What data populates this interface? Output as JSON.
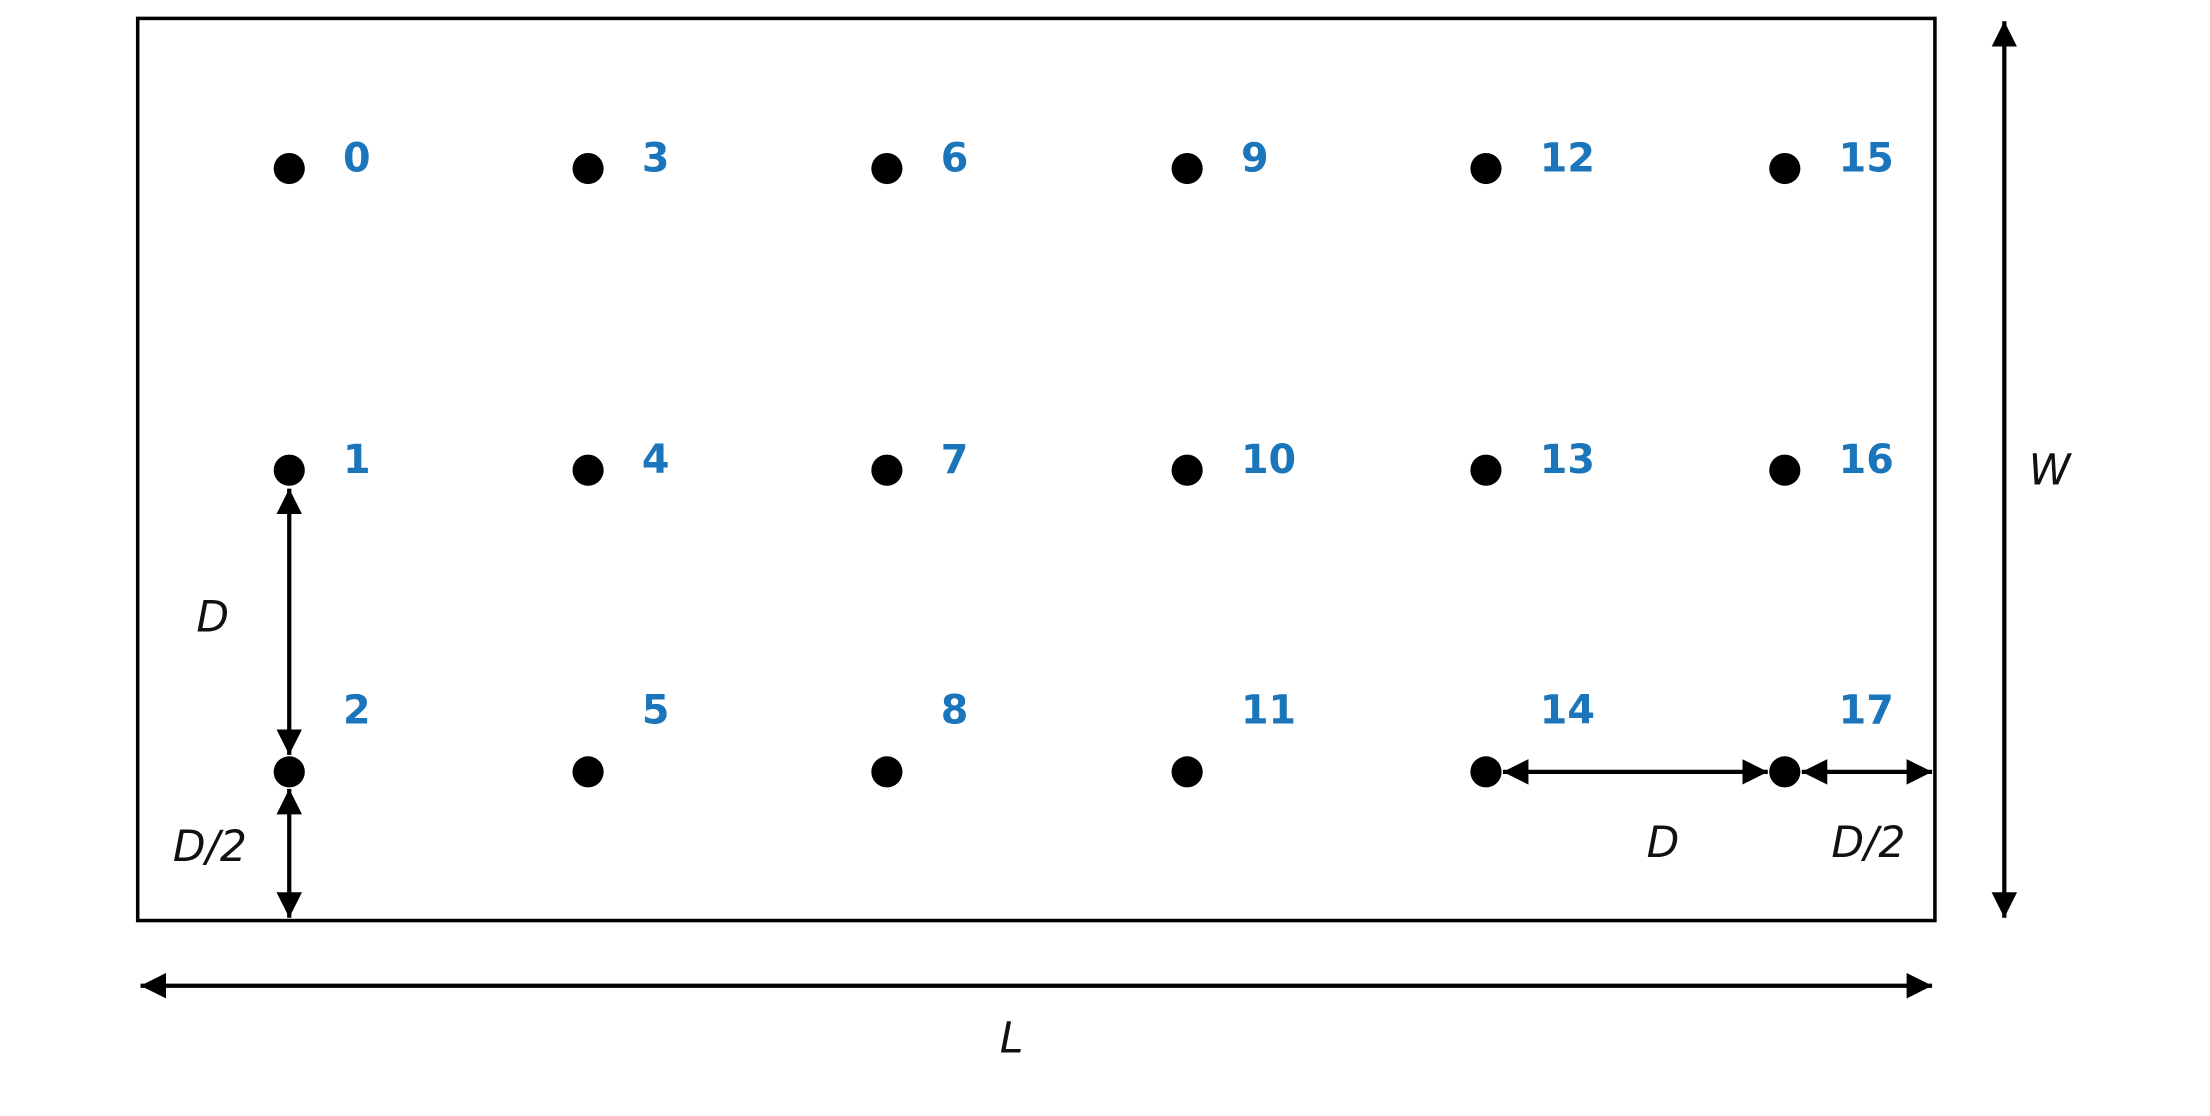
{
  "nodes": [
    {
      "label": "0"
    },
    {
      "label": "1"
    },
    {
      "label": "2"
    },
    {
      "label": "3"
    },
    {
      "label": "4"
    },
    {
      "label": "5"
    },
    {
      "label": "6"
    },
    {
      "label": "7"
    },
    {
      "label": "8"
    },
    {
      "label": "9"
    },
    {
      "label": "10"
    },
    {
      "label": "11"
    },
    {
      "label": "12"
    },
    {
      "label": "13"
    },
    {
      "label": "14"
    },
    {
      "label": "15"
    },
    {
      "label": "16"
    },
    {
      "label": "17"
    }
  ],
  "dimensions": {
    "vertical_spacing": "D",
    "bottom_margin": "D/2",
    "horizontal_spacing": "D",
    "right_margin": "D/2",
    "width": "W",
    "length": "L"
  }
}
